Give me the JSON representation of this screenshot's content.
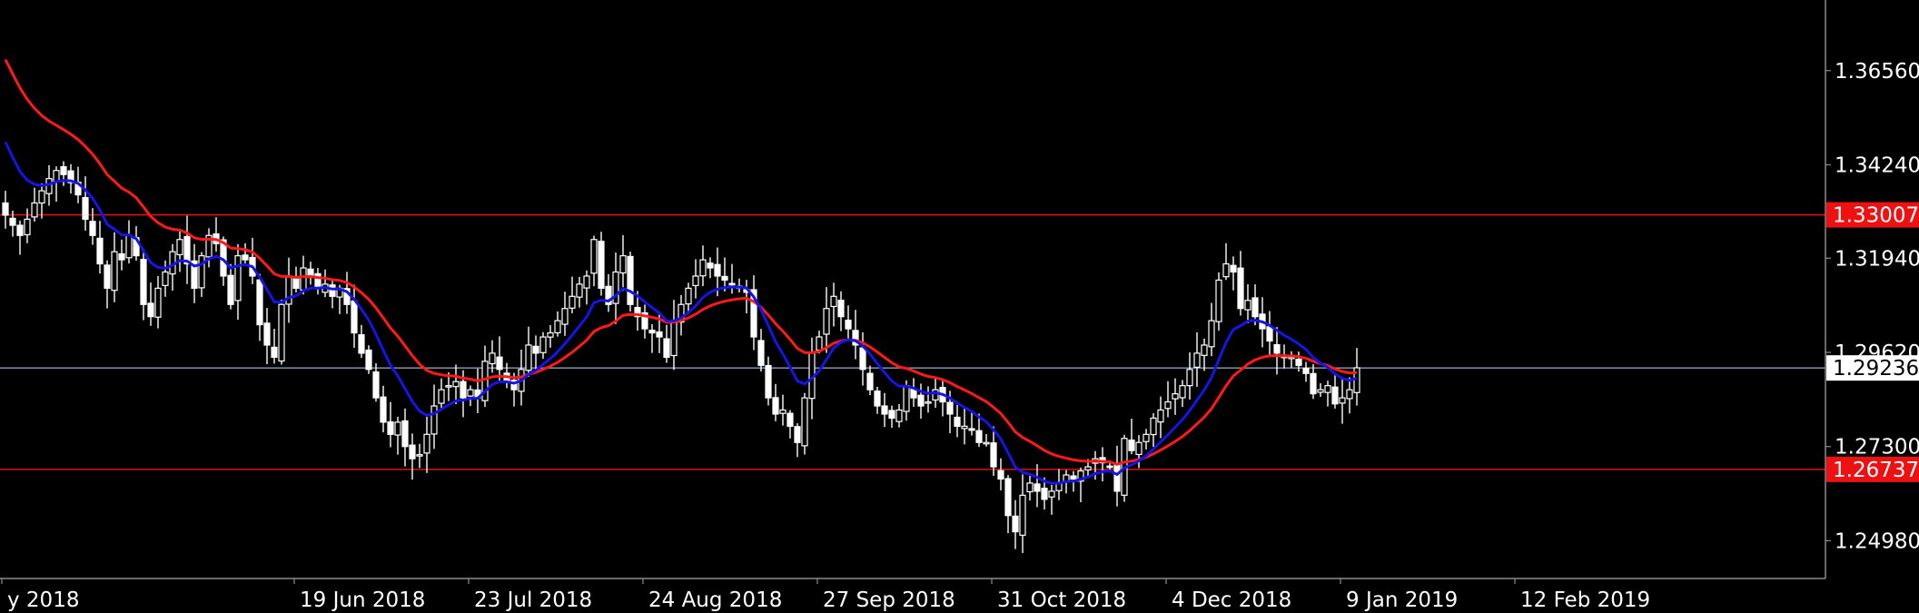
{
  "colors": {
    "background": "#000000",
    "axis": "#8c8c8c",
    "candle_up_fill": "#000000",
    "candle_down_fill": "#ffffff",
    "candle_wick": "#ffffff",
    "ma_fast": "#1515e6",
    "ma_slow": "#ff1a1a",
    "level_line": "#d81414",
    "current_price_line": "#8aa0b8",
    "level_badge": "#ee1111",
    "current_badge": "#ffffff"
  },
  "chart_data": {
    "type": "candlestick",
    "instrument_note": "",
    "ylim": [
      1.2405,
      1.383
    ],
    "y_ticks": [
      {
        "value": 1.3656,
        "label": "1.36560"
      },
      {
        "value": 1.3424,
        "label": "1.34240"
      },
      {
        "value": 1.3194,
        "label": "1.31940"
      },
      {
        "value": 1.2962,
        "label": "1.29620"
      },
      {
        "value": 1.273,
        "label": "1.27300"
      },
      {
        "value": 1.2498,
        "label": "1.24980"
      }
    ],
    "x_ticks": [
      {
        "bar": 0,
        "label": "y 2018"
      },
      {
        "bar": 24,
        "label": "19 Jun 2018"
      },
      {
        "bar": 48,
        "label": "23 Jul 2018"
      },
      {
        "bar": 72,
        "label": "24 Aug 2018"
      },
      {
        "bar": 96,
        "label": "27 Sep 2018"
      },
      {
        "bar": 120,
        "label": "31 Oct 2018"
      },
      {
        "bar": 144,
        "label": "4 Dec 2018"
      },
      {
        "bar": 168,
        "label": "9 Jan 2019"
      },
      {
        "bar": 192,
        "label": "12 Feb 2019"
      }
    ],
    "bars_total": 252,
    "levels": [
      {
        "name": "resistance",
        "value": 1.33007,
        "label": "1.33007"
      },
      {
        "name": "support",
        "value": 1.26737,
        "label": "1.26737"
      }
    ],
    "current_price": {
      "value": 1.29236,
      "label": "1.29236"
    },
    "closes": [
      1.33,
      1.3275,
      1.325,
      1.329,
      1.333,
      1.336,
      1.339,
      1.341,
      1.34,
      1.338,
      1.335,
      1.329,
      1.325,
      1.318,
      1.312,
      1.321,
      1.319,
      1.325,
      1.32,
      1.308,
      1.305,
      1.312,
      1.316,
      1.321,
      1.324,
      1.318,
      1.312,
      1.32,
      1.325,
      1.323,
      1.315,
      1.308,
      1.32,
      1.319,
      1.315,
      1.303,
      1.298,
      1.295,
      1.308,
      1.315,
      1.312,
      1.317,
      1.315,
      1.312,
      1.313,
      1.31,
      1.312,
      1.308,
      1.301,
      1.296,
      1.292,
      1.285,
      1.279,
      1.276,
      1.279,
      1.273,
      1.27,
      1.271,
      1.276,
      1.283,
      1.287,
      1.288,
      1.289,
      1.285,
      1.287,
      1.285,
      1.294,
      1.296,
      1.292,
      1.289,
      1.287,
      1.292,
      1.298,
      1.296,
      1.3,
      1.301,
      1.304,
      1.307,
      1.31,
      1.313,
      1.315,
      1.324,
      1.312,
      1.308,
      1.316,
      1.32,
      1.308,
      1.305,
      1.302,
      1.301,
      1.3,
      1.295,
      1.304,
      1.308,
      1.312,
      1.315,
      1.319,
      1.317,
      1.315,
      1.314,
      1.313,
      1.312,
      1.311,
      1.3,
      1.293,
      1.285,
      1.281,
      1.282,
      1.278,
      1.274,
      1.285,
      1.296,
      1.3,
      1.307,
      1.31,
      1.305,
      1.302,
      1.298,
      1.292,
      1.287,
      1.283,
      1.281,
      1.28,
      1.282,
      1.288,
      1.285,
      1.283,
      1.284,
      1.287,
      1.284,
      1.281,
      1.278,
      1.278,
      1.277,
      1.274,
      1.274,
      1.268,
      1.265,
      1.256,
      1.252,
      1.261,
      1.264,
      1.262,
      1.26,
      1.262,
      1.264,
      1.266,
      1.265,
      1.267,
      1.268,
      1.27,
      1.269,
      1.268,
      1.262,
      1.275,
      1.272,
      1.274,
      1.276,
      1.28,
      1.282,
      1.284,
      1.286,
      1.288,
      1.292,
      1.296,
      1.298,
      1.304,
      1.314,
      1.318,
      1.316,
      1.307,
      1.309,
      1.305,
      1.302,
      1.299,
      1.296,
      1.295,
      1.295,
      1.293,
      1.291,
      1.286,
      1.287,
      1.288,
      1.2835,
      1.285,
      1.287,
      1.2924
    ],
    "series": [
      {
        "name": "",
        "values": []
      },
      {
        "name": "",
        "values": []
      }
    ]
  }
}
